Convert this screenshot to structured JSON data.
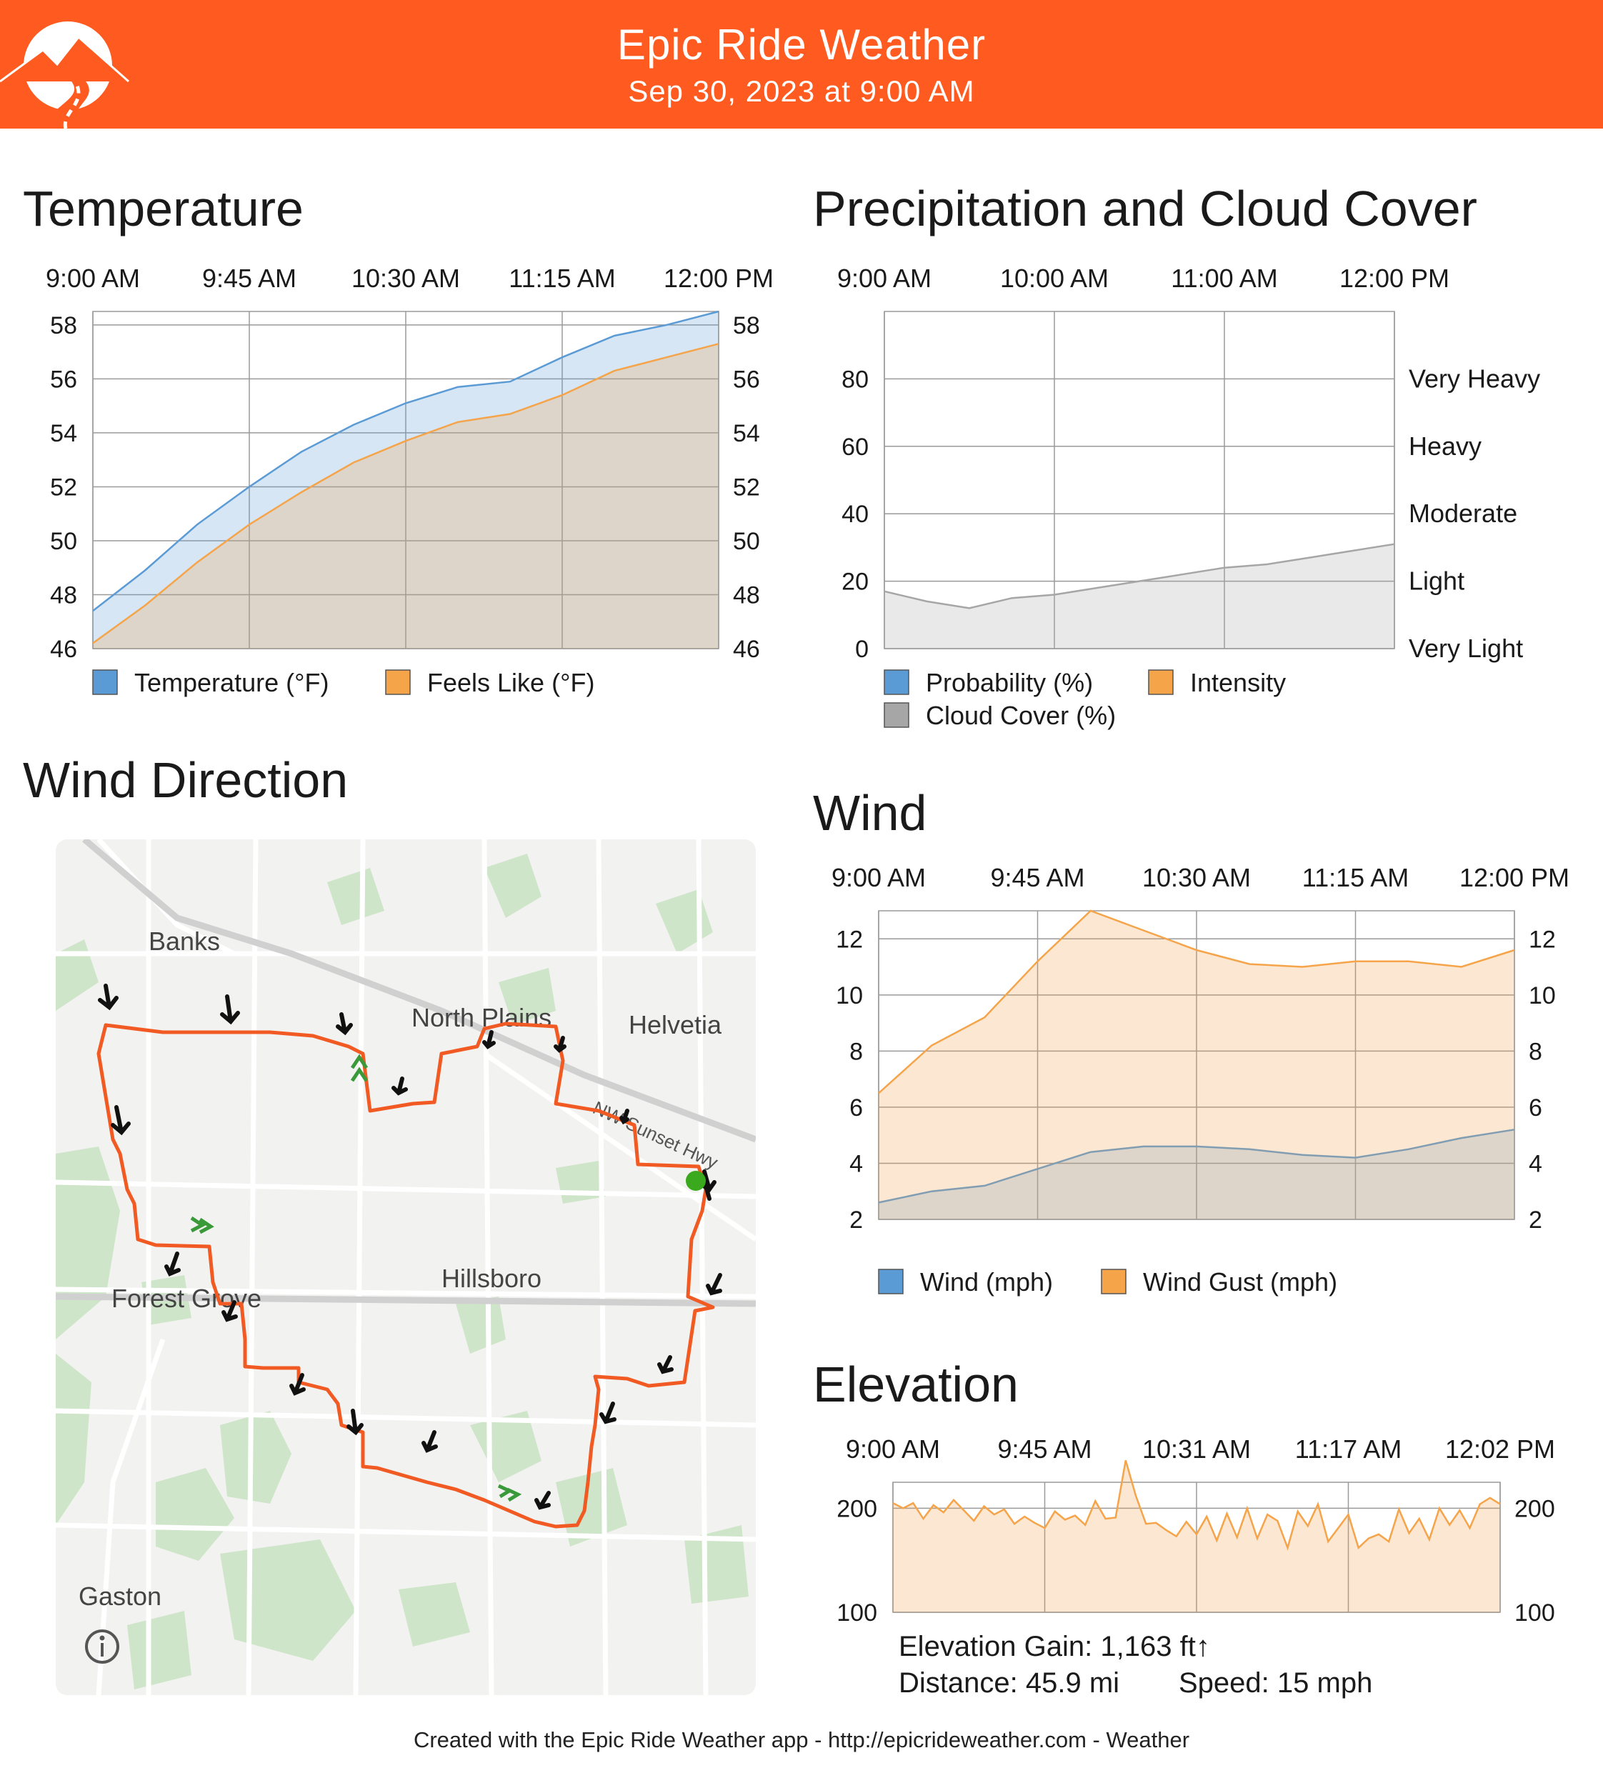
{
  "header": {
    "title": "Epic Ride Weather",
    "subtitle": "Sep 30, 2023 at 9:00 AM",
    "background_color": "#ff5a1f"
  },
  "sections": {
    "temperature": "Temperature",
    "precipitation": "Precipitation and Cloud Cover",
    "wind_direction": "Wind Direction",
    "wind": "Wind",
    "elevation": "Elevation"
  },
  "chart_data": [
    {
      "id": "temperature",
      "type": "area",
      "x_ticks": [
        "9:00 AM",
        "9:45 AM",
        "10:30 AM",
        "11:15 AM",
        "12:00 PM"
      ],
      "x_range": [
        0,
        180
      ],
      "ylim": [
        46,
        58.5
      ],
      "y_ticks": [
        46,
        48,
        50,
        52,
        54,
        56,
        58
      ],
      "grid": true,
      "legend_position": "bottom",
      "series": [
        {
          "name": "Temperature (°F)",
          "color": "#5b9bd5",
          "x": [
            0,
            15,
            30,
            45,
            60,
            75,
            90,
            105,
            120,
            135,
            150,
            165,
            180
          ],
          "values": [
            47.4,
            48.9,
            50.6,
            52.0,
            53.3,
            54.3,
            55.1,
            55.7,
            55.9,
            56.8,
            57.6,
            58.0,
            58.5
          ]
        },
        {
          "name": "Feels Like (°F)",
          "color": "#f5a44a",
          "x": [
            0,
            15,
            30,
            45,
            60,
            75,
            90,
            105,
            120,
            135,
            150,
            165,
            180
          ],
          "values": [
            46.2,
            47.6,
            49.2,
            50.6,
            51.8,
            52.9,
            53.7,
            54.4,
            54.7,
            55.4,
            56.3,
            56.8,
            57.3
          ]
        }
      ]
    },
    {
      "id": "precipitation",
      "type": "area",
      "x_ticks": [
        "9:00 AM",
        "10:00 AM",
        "11:00 AM",
        "12:00 PM"
      ],
      "x_range": [
        0,
        180
      ],
      "ylim": [
        0,
        100
      ],
      "y_ticks": [
        0,
        20,
        40,
        60,
        80
      ],
      "right_ticks": [
        "Very Light",
        "Light",
        "Moderate",
        "Heavy",
        "Very Heavy"
      ],
      "grid": true,
      "legend_position": "bottom",
      "series": [
        {
          "name": "Probability (%)",
          "color": "#5b9bd5",
          "x": [
            0,
            180
          ],
          "values": [
            0,
            0
          ]
        },
        {
          "name": "Intensity",
          "color": "#f5a44a",
          "x": [
            0,
            180
          ],
          "values": [
            0,
            0
          ]
        },
        {
          "name": "Cloud Cover (%)",
          "color": "#a6a6a6",
          "x": [
            0,
            15,
            30,
            45,
            60,
            75,
            90,
            105,
            120,
            135,
            150,
            165,
            180
          ],
          "values": [
            17,
            14,
            12,
            15,
            16,
            18,
            20,
            22,
            24,
            25,
            27,
            29,
            31
          ]
        }
      ]
    },
    {
      "id": "wind",
      "type": "area",
      "x_ticks": [
        "9:00 AM",
        "9:45 AM",
        "10:30 AM",
        "11:15 AM",
        "12:00 PM"
      ],
      "x_range": [
        0,
        180
      ],
      "ylim": [
        2,
        13
      ],
      "y_ticks": [
        2,
        4,
        6,
        8,
        10,
        12
      ],
      "grid": true,
      "legend_position": "bottom",
      "series": [
        {
          "name": "Wind (mph)",
          "color": "#5b9bd5",
          "x": [
            0,
            15,
            30,
            45,
            60,
            75,
            90,
            105,
            120,
            135,
            150,
            165,
            180
          ],
          "values": [
            2.6,
            3.0,
            3.2,
            3.8,
            4.4,
            4.6,
            4.6,
            4.5,
            4.3,
            4.2,
            4.5,
            4.9,
            5.2
          ]
        },
        {
          "name": "Wind Gust (mph)",
          "color": "#f5a44a",
          "x": [
            0,
            15,
            30,
            45,
            60,
            75,
            90,
            105,
            120,
            135,
            150,
            165,
            180
          ],
          "values": [
            6.5,
            8.2,
            9.2,
            11.2,
            13.0,
            12.3,
            11.6,
            11.1,
            11.0,
            11.2,
            11.2,
            11.0,
            11.6
          ]
        }
      ]
    },
    {
      "id": "elevation",
      "type": "area",
      "x_ticks": [
        "9:00 AM",
        "9:45 AM",
        "10:31 AM",
        "11:17 AM",
        "12:02 PM"
      ],
      "x_range": [
        0,
        180
      ],
      "ylim": [
        100,
        225
      ],
      "y_ticks": [
        100,
        200
      ],
      "grid": true,
      "series": [
        {
          "name": "Elevation",
          "color": "#f5a44a",
          "x": [
            0,
            3,
            6,
            9,
            12,
            15,
            18,
            21,
            24,
            27,
            30,
            33,
            36,
            39,
            42,
            45,
            48,
            51,
            54,
            57,
            60,
            63,
            66,
            69,
            72,
            75,
            78,
            81,
            84,
            87,
            90,
            93,
            96,
            99,
            102,
            105,
            108,
            111,
            114,
            117,
            120,
            123,
            126,
            129,
            132,
            135,
            138,
            141,
            144,
            147,
            150,
            153,
            156,
            159,
            162,
            165,
            168,
            171,
            174,
            177,
            180
          ],
          "values": [
            205,
            200,
            205,
            190,
            203,
            196,
            208,
            198,
            188,
            202,
            194,
            199,
            185,
            192,
            186,
            181,
            197,
            189,
            193,
            184,
            207,
            190,
            191,
            246,
            212,
            185,
            186,
            179,
            173,
            187,
            175,
            192,
            169,
            195,
            172,
            200,
            171,
            194,
            188,
            162,
            197,
            183,
            204,
            168,
            181,
            194,
            162,
            171,
            175,
            168,
            199,
            176,
            190,
            170,
            200,
            184,
            198,
            181,
            204,
            210,
            204
          ]
        }
      ]
    }
  ],
  "map": {
    "places": [
      "Banks",
      "North Plains",
      "Helvetia",
      "Forest Grove",
      "Hillsboro",
      "Gaston"
    ],
    "road_label": "NW Sunset Hwy",
    "route_color": "#f25a24"
  },
  "stats": {
    "elevation_gain": "Elevation Gain: 1,163 ft↑",
    "distance": "Distance: 45.9 mi",
    "speed": "Speed: 15 mph"
  },
  "footer": {
    "text": "Created with the Epic Ride Weather app - http://epicrideweather.com -  Weather"
  }
}
